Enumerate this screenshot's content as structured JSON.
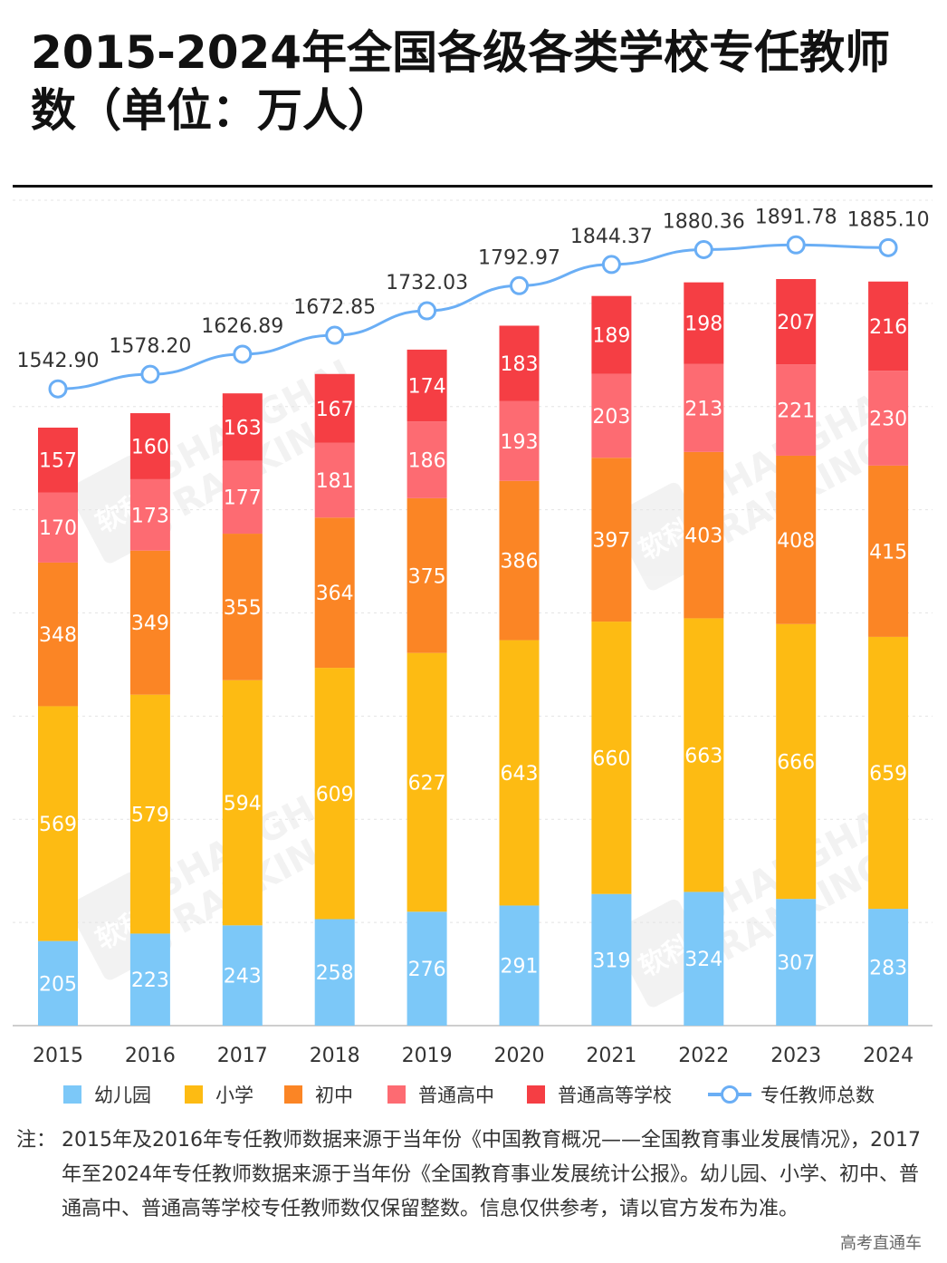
{
  "title": "2015-2024年全国各级各类学校专任教师数（单位：万人）",
  "watermark": {
    "line1": "SHANGHAI",
    "line2": "RANKING",
    "logo": "软科"
  },
  "chart_data": {
    "type": "bar",
    "stacked": true,
    "categories": [
      "2015",
      "2016",
      "2017",
      "2018",
      "2019",
      "2020",
      "2021",
      "2022",
      "2023",
      "2024"
    ],
    "series": [
      {
        "name": "幼儿园",
        "color": "#7cc8f8",
        "values": [
          205,
          223,
          243,
          258,
          276,
          291,
          319,
          324,
          307,
          283
        ]
      },
      {
        "name": "小学",
        "color": "#fdbb13",
        "values": [
          569,
          579,
          594,
          609,
          627,
          643,
          660,
          663,
          666,
          659
        ]
      },
      {
        "name": "初中",
        "color": "#fb8525",
        "values": [
          348,
          349,
          355,
          364,
          375,
          386,
          397,
          403,
          408,
          415
        ]
      },
      {
        "name": "普通高中",
        "color": "#fd6b72",
        "values": [
          170,
          173,
          177,
          181,
          186,
          193,
          203,
          213,
          221,
          230
        ]
      },
      {
        "name": "普通高等学校",
        "color": "#f53e44",
        "values": [
          157,
          160,
          163,
          167,
          174,
          183,
          189,
          198,
          207,
          216
        ]
      }
    ],
    "line": {
      "name": "专任教师总数",
      "color": "#6aaef5",
      "values": [
        1542.9,
        1578.2,
        1626.89,
        1672.85,
        1732.03,
        1792.97,
        1844.37,
        1880.36,
        1891.78,
        1885.1
      ],
      "labels": [
        "1542.90",
        "1578.20",
        "1626.89",
        "1672.85",
        "1732.03",
        "1792.97",
        "1844.37",
        "1880.36",
        "1891.78",
        "1885.10"
      ]
    },
    "ylim": [
      0,
      2000
    ],
    "grid": true,
    "legend": "bottom"
  },
  "note_label": "注：",
  "note_text": "2015年及2016年专任教师数据来源于当年份《中国教育概况——全国教育事业发展情况》，2017年至2024年专任教师数据来源于当年份《全国教育事业发展统计公报》。幼儿园、小学、初中、普通高中、普通高等学校专任教师数仅保留整数。信息仅供参考，请以官方发布为准。",
  "credit": "高考直通车"
}
